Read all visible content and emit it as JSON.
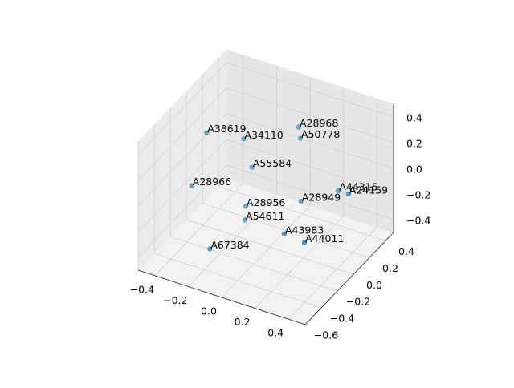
{
  "chart_data": {
    "type": "scatter3d",
    "labels": [
      "A38619",
      "A34110",
      "A28968",
      "A50778",
      "A55584",
      "A28966",
      "A44315",
      "A24159",
      "A28949",
      "A28956",
      "A54611",
      "A43983",
      "A44011",
      "A67384"
    ],
    "x": [
      -0.34,
      -0.2,
      0.0,
      0.0,
      -0.15,
      -0.4,
      0.29,
      0.35,
      0.11,
      -0.12,
      -0.12,
      0.12,
      0.25,
      -0.21
    ],
    "y": [
      -0.08,
      0.09,
      0.36,
      0.38,
      0.09,
      -0.14,
      0.25,
      0.25,
      0.16,
      -0.05,
      -0.06,
      -0.07,
      -0.09,
      -0.31
    ],
    "z": [
      0.3,
      0.2,
      0.2,
      0.1,
      0.0,
      -0.1,
      -0.1,
      -0.1,
      -0.2,
      -0.2,
      -0.3,
      -0.3,
      -0.3,
      -0.4
    ],
    "color": "#1f77b4",
    "xlim": [
      -0.5,
      0.5
    ],
    "ylim": [
      -0.6,
      0.5
    ],
    "zlim": [
      -0.5,
      0.5
    ],
    "xticks": [
      {
        "value": -0.4,
        "label": "−0.4"
      },
      {
        "value": -0.2,
        "label": "−0.2"
      },
      {
        "value": 0.0,
        "label": "0.0"
      },
      0.2,
      0.4
    ],
    "yticks": [
      {
        "value": -0.6,
        "label": "−0.6"
      },
      {
        "value": -0.4,
        "label": "−0.4"
      },
      {
        "value": -0.2,
        "label": "−0.2"
      },
      {
        "value": 0.0,
        "label": "0.0"
      },
      0.2,
      0.4
    ],
    "zticks": [
      {
        "value": -0.4,
        "label": "−0.4"
      },
      {
        "value": -0.2,
        "label": "−0.2"
      },
      {
        "value": 0.0,
        "label": "0.0"
      },
      0.2,
      0.4
    ],
    "grid": true
  }
}
